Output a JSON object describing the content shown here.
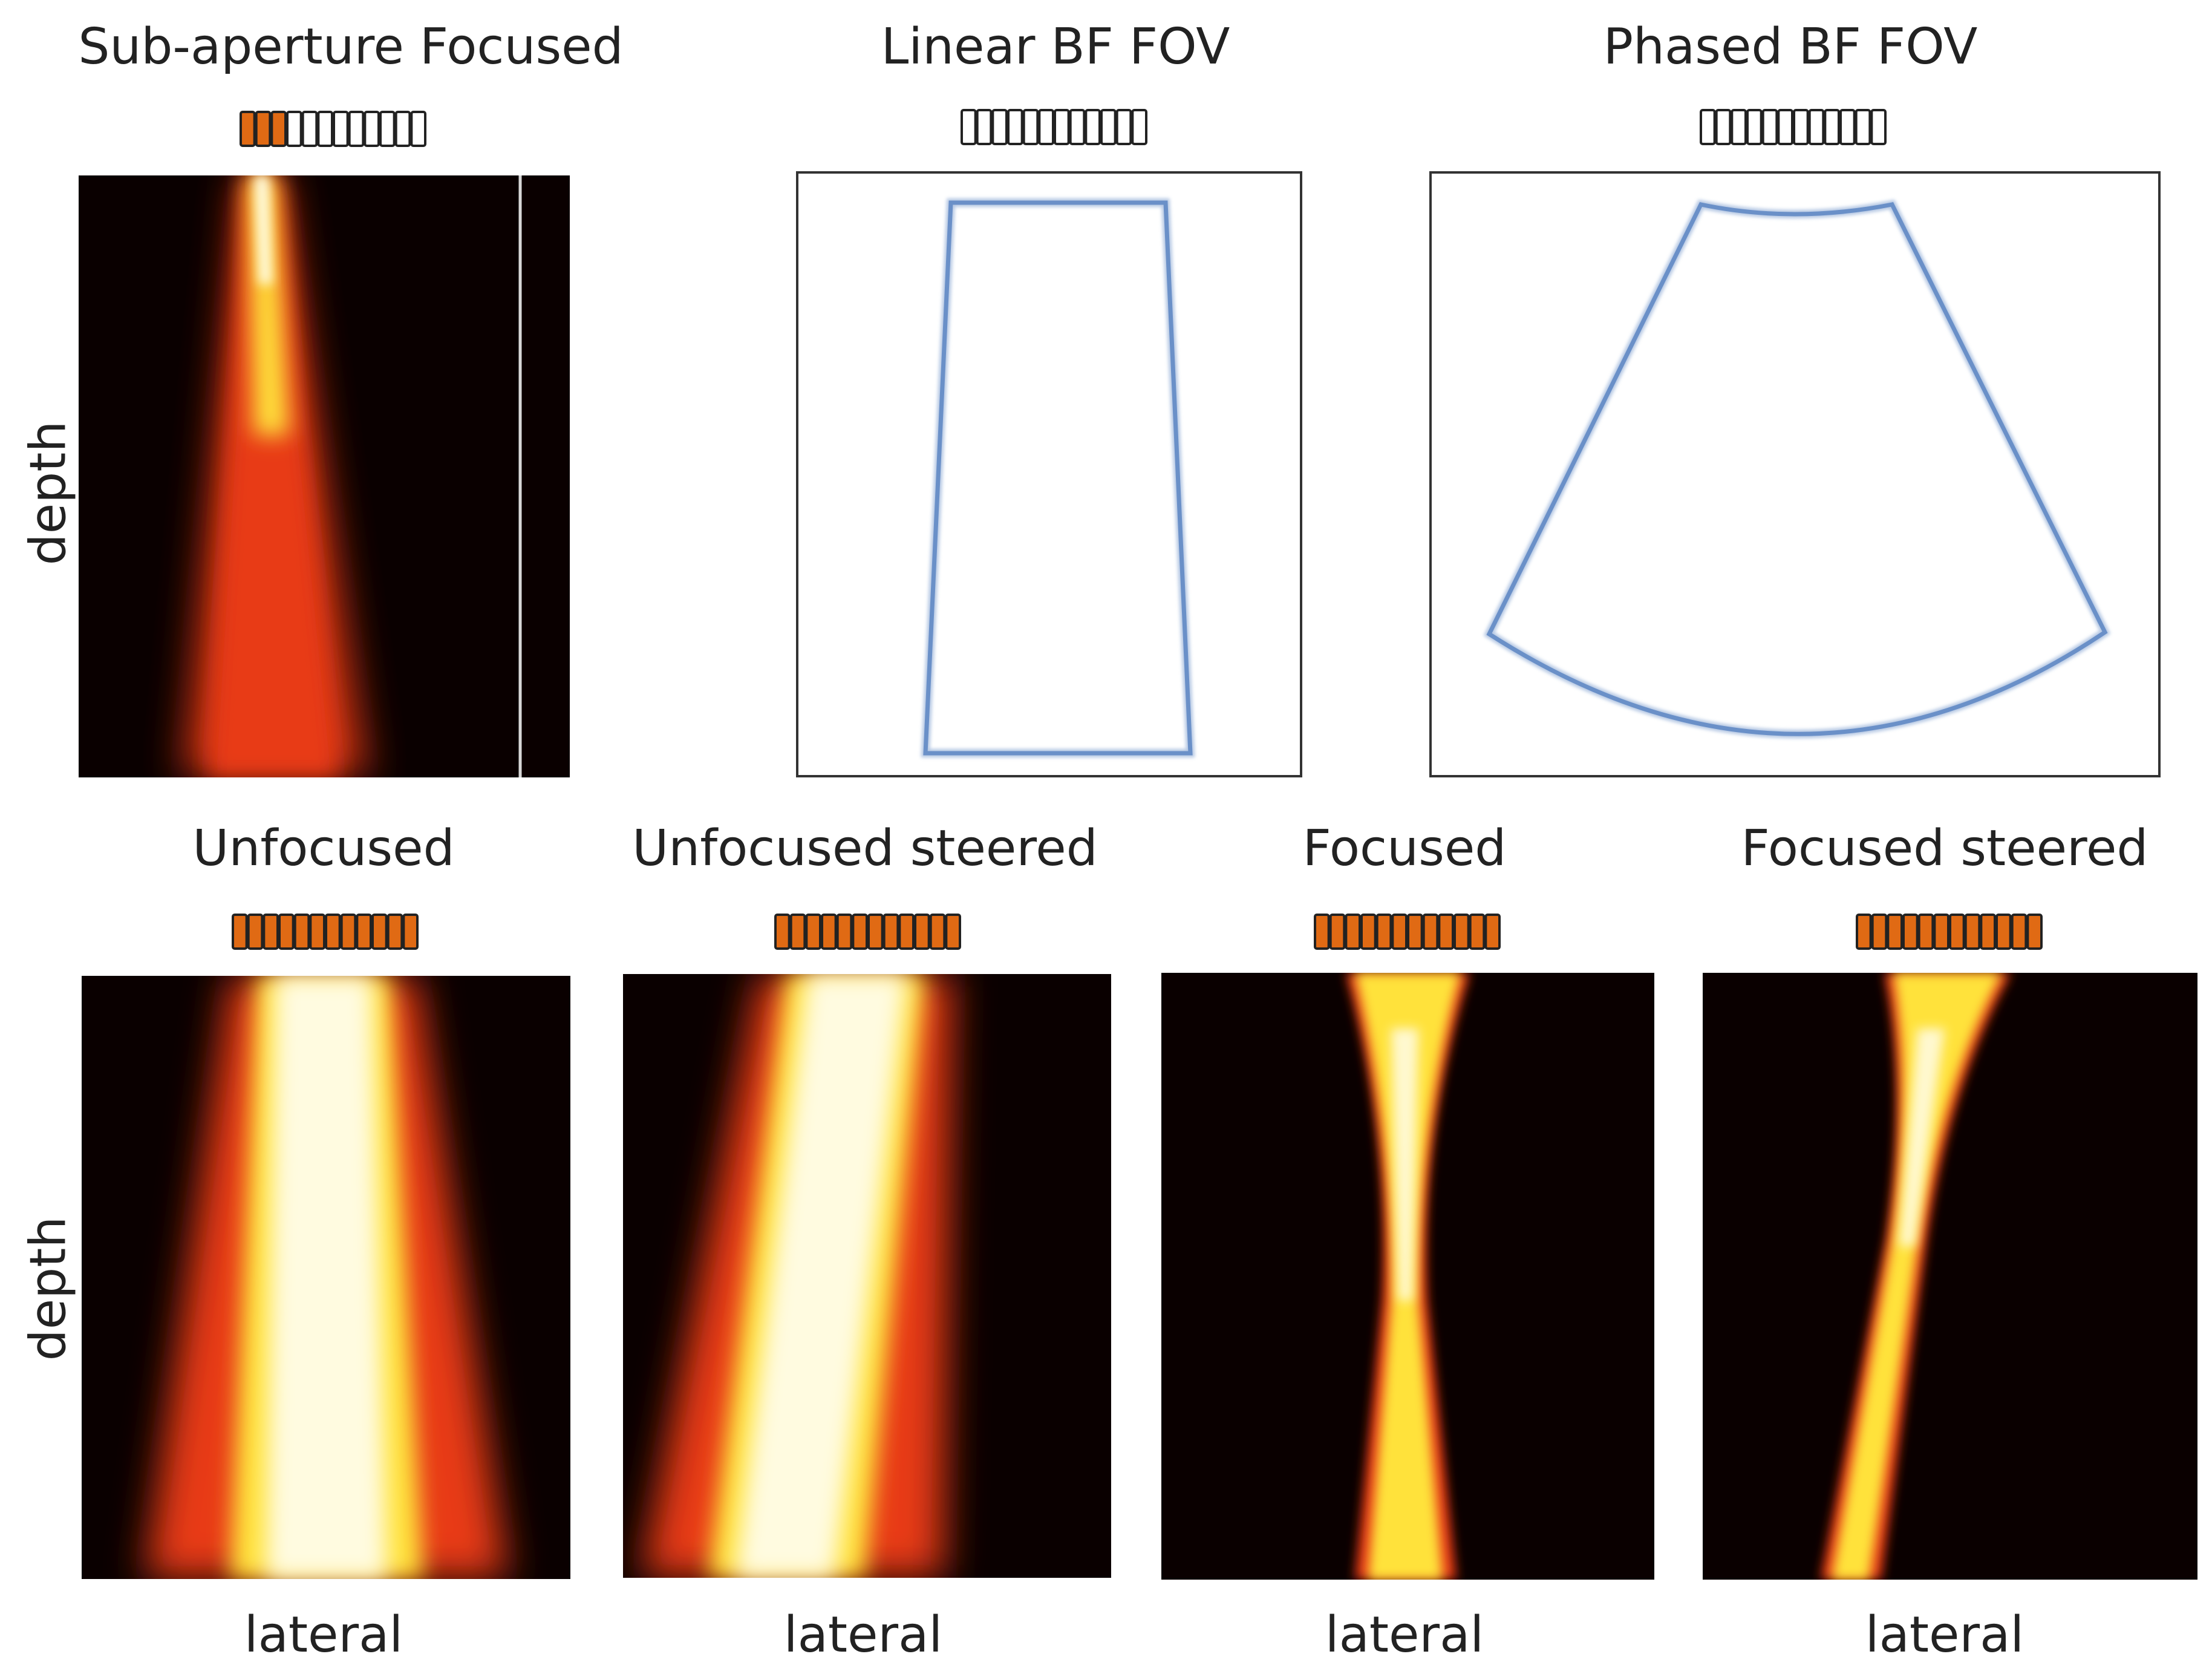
{
  "colors": {
    "beam_dark": "#0a0000",
    "beam_red": "#e83a12",
    "beam_yellow": "#ffe23a",
    "beam_core": "#fffbe0",
    "fov_outline": "#6a90c8",
    "element_active": "#e06a14",
    "element_inactive": "#ffffff"
  },
  "panels": [
    {
      "id": "sub-aperture-focused",
      "title": "Sub-aperture Focused",
      "ylabel": "depth",
      "active_elements": 3,
      "total_elements": 12
    },
    {
      "id": "linear-bf-fov",
      "title": "Linear BF FOV",
      "active_elements": 0,
      "total_elements": 12
    },
    {
      "id": "phased-bf-fov",
      "title": "Phased BF FOV",
      "active_elements": 0,
      "total_elements": 12
    },
    {
      "id": "unfocused",
      "title": "Unfocused",
      "ylabel": "depth",
      "xlabel": "lateral",
      "active_elements": 12,
      "total_elements": 12
    },
    {
      "id": "unfocused-steered",
      "title": "Unfocused steered",
      "xlabel": "lateral",
      "active_elements": 12,
      "total_elements": 12
    },
    {
      "id": "focused",
      "title": "Focused",
      "xlabel": "lateral",
      "active_elements": 12,
      "total_elements": 12
    },
    {
      "id": "focused-steered",
      "title": "Focused steered",
      "xlabel": "lateral",
      "active_elements": 12,
      "total_elements": 12
    }
  ]
}
